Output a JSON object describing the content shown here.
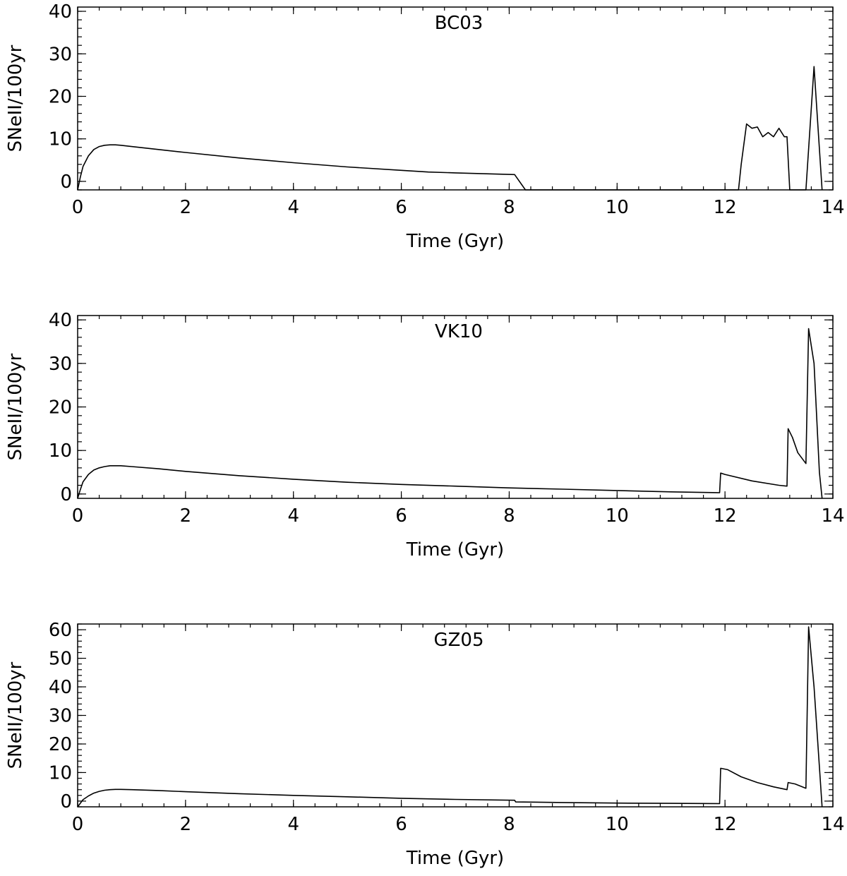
{
  "colors": {
    "line": "#000000",
    "background": "#ffffff"
  },
  "chart_data": [
    {
      "type": "line",
      "title": "BC03",
      "xlabel": "Time (Gyr)",
      "ylabel": "SNeII/100yr",
      "xlim": [
        0,
        14
      ],
      "ylim": [
        -2,
        41
      ],
      "xticks": [
        0,
        2,
        4,
        6,
        8,
        10,
        12,
        14
      ],
      "yticks": [
        0,
        10,
        20,
        30,
        40
      ],
      "grid": false,
      "series": [
        {
          "x": [
            0.0,
            0.05,
            0.1,
            0.2,
            0.3,
            0.4,
            0.5,
            0.6,
            0.7,
            0.8,
            1.0,
            1.5,
            2.0,
            3.0,
            4.0,
            5.0,
            6.0,
            6.5,
            7.0,
            8.1,
            8.3,
            9.0,
            10.0,
            11.0,
            12.0,
            12.25,
            12.3,
            12.4,
            12.5,
            12.6,
            12.7,
            12.8,
            12.9,
            13.0,
            13.1,
            13.15,
            13.2,
            13.5,
            13.65,
            13.8
          ],
          "y": [
            -2,
            1,
            3.5,
            6,
            7.5,
            8.2,
            8.5,
            8.6,
            8.6,
            8.5,
            8.2,
            7.5,
            6.8,
            5.5,
            4.4,
            3.4,
            2.6,
            2.2,
            2.0,
            1.6,
            -2,
            -2,
            -2,
            -2,
            -2,
            -2,
            4,
            13.5,
            12.5,
            12.8,
            10.5,
            11.5,
            10.5,
            12.5,
            10.5,
            10.5,
            -2,
            -2,
            27,
            -2
          ]
        }
      ]
    },
    {
      "type": "line",
      "title": "VK10",
      "xlabel": "Time (Gyr)",
      "ylabel": "SNeII/100yr",
      "xlim": [
        0,
        14
      ],
      "ylim": [
        -1,
        41
      ],
      "xticks": [
        0,
        2,
        4,
        6,
        8,
        10,
        12,
        14
      ],
      "yticks": [
        0,
        10,
        20,
        30,
        40
      ],
      "grid": false,
      "series": [
        {
          "x": [
            0.0,
            0.05,
            0.1,
            0.2,
            0.3,
            0.4,
            0.5,
            0.6,
            0.7,
            0.8,
            1.0,
            1.5,
            2.0,
            3.0,
            4.0,
            5.0,
            6.0,
            7.0,
            8.0,
            9.0,
            10.0,
            11.0,
            11.9,
            11.92,
            12.0,
            12.5,
            13.0,
            13.15,
            13.17,
            13.25,
            13.35,
            13.5,
            13.55,
            13.65,
            13.75,
            13.8
          ],
          "y": [
            -1,
            1,
            2.8,
            4.5,
            5.5,
            6.0,
            6.3,
            6.5,
            6.5,
            6.5,
            6.3,
            5.8,
            5.2,
            4.2,
            3.4,
            2.7,
            2.2,
            1.8,
            1.4,
            1.1,
            0.8,
            0.5,
            0.3,
            4.8,
            4.5,
            3.0,
            2.0,
            1.8,
            15,
            13,
            9.5,
            7,
            38,
            30,
            5,
            -1
          ]
        }
      ]
    },
    {
      "type": "line",
      "title": "GZ05",
      "xlabel": "Time (Gyr)",
      "ylabel": "SNeII/100yr",
      "xlim": [
        0,
        14
      ],
      "ylim": [
        -2,
        62
      ],
      "xticks": [
        0,
        2,
        4,
        6,
        8,
        10,
        12,
        14
      ],
      "yticks": [
        0,
        10,
        20,
        30,
        40,
        50,
        60
      ],
      "grid": false,
      "series": [
        {
          "x": [
            0.0,
            0.1,
            0.2,
            0.3,
            0.4,
            0.5,
            0.6,
            0.7,
            0.8,
            1.0,
            1.5,
            2.0,
            3.0,
            4.0,
            5.0,
            6.0,
            7.0,
            8.1,
            8.12,
            9.0,
            10.0,
            11.0,
            11.9,
            11.92,
            12.05,
            12.3,
            12.6,
            12.9,
            13.15,
            13.17,
            13.3,
            13.5,
            13.55,
            13.65,
            13.75,
            13.8
          ],
          "y": [
            -2,
            0.5,
            1.8,
            2.8,
            3.4,
            3.8,
            4.0,
            4.1,
            4.1,
            4.0,
            3.7,
            3.3,
            2.6,
            2.0,
            1.5,
            1.0,
            0.6,
            0.3,
            -0.3,
            -0.5,
            -0.7,
            -0.8,
            -0.9,
            11.5,
            11.0,
            8.5,
            6.5,
            5.0,
            4.0,
            6.5,
            6.0,
            4.5,
            61,
            40,
            12,
            -2
          ]
        }
      ]
    }
  ]
}
